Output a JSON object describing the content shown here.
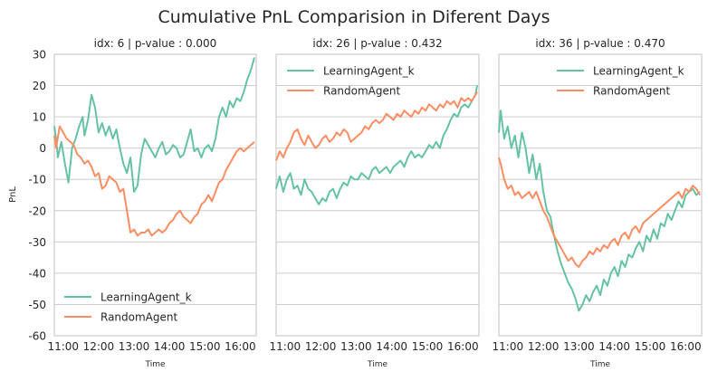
{
  "figure": {
    "title": "Cumulative PnL Comparision in Diferent Days",
    "ylabel": "PnL"
  },
  "colors": {
    "learning": "#66c2a5",
    "random": "#fc8d62",
    "grid": "#cccccc",
    "frame": "#cccccc"
  },
  "chart_data": [
    {
      "type": "line",
      "title": "idx: 6 | p-value : 0.000",
      "xlabel": "Time",
      "ylabel": "PnL",
      "xticks": [
        "11:00",
        "12:00",
        "13:00",
        "14:00",
        "15:00",
        "16:00"
      ],
      "yticks": [
        30,
        20,
        10,
        0,
        -10,
        -20,
        -30,
        -40,
        -50,
        -60
      ],
      "xlim": [
        10.75,
        16.45
      ],
      "ylim": [
        -60,
        30
      ],
      "legend": "bottom-left",
      "series": [
        {
          "name": "LearningAgent_k",
          "x": [
            10.75,
            10.8,
            10.85,
            10.95,
            11.05,
            11.15,
            11.25,
            11.35,
            11.45,
            11.55,
            11.6,
            11.7,
            11.8,
            11.9,
            12.0,
            12.1,
            12.2,
            12.3,
            12.4,
            12.5,
            12.6,
            12.7,
            12.8,
            12.9,
            13.0,
            13.1,
            13.2,
            13.3,
            13.4,
            13.5,
            13.6,
            13.7,
            13.8,
            13.9,
            14.0,
            14.1,
            14.2,
            14.3,
            14.4,
            14.5,
            14.6,
            14.7,
            14.8,
            14.9,
            15.0,
            15.1,
            15.2,
            15.3,
            15.4,
            15.5,
            15.6,
            15.7,
            15.8,
            15.9,
            16.0,
            16.1,
            16.2,
            16.3,
            16.4
          ],
          "values": [
            7,
            3,
            -3,
            2,
            -5,
            -11,
            0,
            3,
            7,
            10,
            4,
            9,
            17,
            13,
            5,
            8,
            4,
            7,
            3,
            6,
            0,
            -5,
            -8,
            -3,
            -14,
            -12,
            -2,
            3,
            1,
            -1,
            -3,
            0,
            2,
            -2,
            -1,
            1,
            0,
            -3,
            -2,
            2,
            6,
            -1,
            0,
            -3,
            0,
            1,
            -1,
            3,
            10,
            13,
            10,
            15,
            13,
            16,
            15,
            18,
            22,
            25,
            29
          ]
        },
        {
          "name": "RandomAgent",
          "x": [
            10.75,
            10.8,
            10.9,
            11.0,
            11.1,
            11.2,
            11.3,
            11.4,
            11.5,
            11.6,
            11.7,
            11.8,
            11.9,
            12.0,
            12.1,
            12.2,
            12.3,
            12.4,
            12.5,
            12.6,
            12.7,
            12.8,
            12.9,
            13.0,
            13.1,
            13.2,
            13.3,
            13.4,
            13.5,
            13.6,
            13.7,
            13.8,
            13.9,
            14.0,
            14.1,
            14.2,
            14.3,
            14.4,
            14.5,
            14.6,
            14.7,
            14.8,
            14.9,
            15.0,
            15.1,
            15.2,
            15.3,
            15.4,
            15.5,
            15.6,
            15.7,
            15.8,
            15.9,
            16.0,
            16.1,
            16.2,
            16.3,
            16.4
          ],
          "values": [
            4,
            0,
            7,
            5,
            3,
            2,
            1,
            -2,
            -3,
            -5,
            -4,
            -6,
            -9,
            -8,
            -13,
            -12,
            -9,
            -10,
            -11,
            -14,
            -13,
            -20,
            -27,
            -26,
            -28,
            -27,
            -27,
            -26,
            -28,
            -27,
            -26,
            -27,
            -26,
            -24,
            -23,
            -21,
            -20,
            -22,
            -23,
            -24,
            -22,
            -21,
            -18,
            -17,
            -15,
            -17,
            -14,
            -11,
            -10,
            -7,
            -5,
            -3,
            -1,
            0,
            -1,
            0,
            1,
            2
          ]
        }
      ]
    },
    {
      "type": "line",
      "title": "idx: 26 | p-value : 0.432",
      "xlabel": "Time",
      "xticks": [
        "11:00",
        "12:00",
        "13:00",
        "14:00",
        "15:00",
        "16:00"
      ],
      "xlim": [
        10.75,
        16.45
      ],
      "ylim": [
        -60,
        30
      ],
      "legend": "top-left",
      "series": [
        {
          "name": "LearningAgent_k",
          "x": [
            10.75,
            10.85,
            10.95,
            11.05,
            11.15,
            11.25,
            11.35,
            11.45,
            11.55,
            11.65,
            11.75,
            11.85,
            11.95,
            12.05,
            12.15,
            12.25,
            12.35,
            12.45,
            12.55,
            12.65,
            12.75,
            12.85,
            12.95,
            13.05,
            13.15,
            13.25,
            13.35,
            13.45,
            13.55,
            13.65,
            13.75,
            13.85,
            13.95,
            14.05,
            14.15,
            14.25,
            14.35,
            14.45,
            14.55,
            14.65,
            14.75,
            14.85,
            14.95,
            15.05,
            15.15,
            15.25,
            15.35,
            15.45,
            15.55,
            15.65,
            15.75,
            15.85,
            15.95,
            16.05,
            16.15,
            16.25,
            16.35,
            16.4
          ],
          "values": [
            -13,
            -9,
            -14,
            -10,
            -8,
            -13,
            -12,
            -15,
            -10,
            -13,
            -14,
            -16,
            -18,
            -16,
            -17,
            -14,
            -13,
            -16,
            -13,
            -11,
            -12,
            -9,
            -10,
            -10,
            -8,
            -9,
            -10,
            -7,
            -6,
            -8,
            -7,
            -6,
            -8,
            -6,
            -5,
            -4,
            -6,
            -3,
            -1,
            -3,
            -2,
            -3,
            -1,
            1,
            0,
            2,
            0,
            4,
            6,
            9,
            11,
            10,
            13,
            14,
            13,
            15,
            17,
            20
          ]
        },
        {
          "name": "RandomAgent",
          "x": [
            10.75,
            10.85,
            10.95,
            11.05,
            11.15,
            11.25,
            11.35,
            11.45,
            11.55,
            11.65,
            11.75,
            11.85,
            11.95,
            12.05,
            12.15,
            12.25,
            12.35,
            12.45,
            12.55,
            12.65,
            12.75,
            12.85,
            12.95,
            13.05,
            13.15,
            13.25,
            13.35,
            13.45,
            13.55,
            13.65,
            13.75,
            13.85,
            13.95,
            14.05,
            14.15,
            14.25,
            14.35,
            14.45,
            14.55,
            14.65,
            14.75,
            14.85,
            14.95,
            15.05,
            15.15,
            15.25,
            15.35,
            15.45,
            15.55,
            15.65,
            15.75,
            15.85,
            15.95,
            16.05,
            16.15,
            16.25,
            16.35,
            16.4
          ],
          "values": [
            -4,
            -1,
            -3,
            0,
            2,
            5,
            6,
            3,
            1,
            4,
            2,
            0,
            1,
            3,
            4,
            2,
            3,
            5,
            4,
            6,
            5,
            2,
            3,
            4,
            5,
            7,
            6,
            8,
            9,
            8,
            9,
            11,
            10,
            9,
            11,
            10,
            12,
            11,
            10,
            12,
            11,
            13,
            12,
            14,
            13,
            12,
            14,
            13,
            15,
            14,
            15,
            13,
            16,
            15,
            16,
            15,
            17,
            18
          ]
        }
      ]
    },
    {
      "type": "line",
      "title": "idx: 36 | p-value : 0.470",
      "xlabel": "Time",
      "xticks": [
        "11:00",
        "12:00",
        "13:00",
        "14:00",
        "15:00",
        "16:00"
      ],
      "xlim": [
        10.75,
        16.45
      ],
      "ylim": [
        -60,
        30
      ],
      "legend": "top-right",
      "series": [
        {
          "name": "LearningAgent_k",
          "x": [
            10.75,
            10.8,
            10.9,
            11.0,
            11.1,
            11.2,
            11.3,
            11.4,
            11.5,
            11.6,
            11.7,
            11.8,
            11.9,
            12.0,
            12.1,
            12.2,
            12.3,
            12.4,
            12.5,
            12.6,
            12.7,
            12.8,
            12.9,
            13.0,
            13.1,
            13.2,
            13.3,
            13.4,
            13.5,
            13.6,
            13.7,
            13.8,
            13.9,
            14.0,
            14.1,
            14.2,
            14.3,
            14.4,
            14.5,
            14.6,
            14.7,
            14.8,
            14.9,
            15.0,
            15.1,
            15.2,
            15.3,
            15.4,
            15.5,
            15.6,
            15.7,
            15.8,
            15.9,
            16.0,
            16.1,
            16.2,
            16.3,
            16.4
          ],
          "values": [
            5,
            12,
            3,
            7,
            0,
            4,
            -3,
            5,
            0,
            -8,
            -2,
            -10,
            -5,
            -14,
            -20,
            -22,
            -28,
            -33,
            -37,
            -40,
            -43,
            -45,
            -48,
            -52,
            -50,
            -47,
            -49,
            -46,
            -44,
            -47,
            -42,
            -44,
            -40,
            -38,
            -41,
            -36,
            -38,
            -34,
            -35,
            -32,
            -30,
            -33,
            -28,
            -30,
            -26,
            -29,
            -24,
            -25,
            -21,
            -23,
            -20,
            -17,
            -19,
            -15,
            -14,
            -13,
            -15,
            -14
          ]
        },
        {
          "name": "RandomAgent",
          "x": [
            10.75,
            10.8,
            10.9,
            11.0,
            11.1,
            11.2,
            11.3,
            11.4,
            11.5,
            11.6,
            11.7,
            11.8,
            11.9,
            12.0,
            12.1,
            12.2,
            12.3,
            12.4,
            12.5,
            12.6,
            12.7,
            12.8,
            12.9,
            13.0,
            13.1,
            13.2,
            13.3,
            13.4,
            13.5,
            13.6,
            13.7,
            13.8,
            13.9,
            14.0,
            14.1,
            14.2,
            14.3,
            14.4,
            14.5,
            14.6,
            14.7,
            14.8,
            14.9,
            15.0,
            15.1,
            15.2,
            15.3,
            15.4,
            15.5,
            15.6,
            15.7,
            15.8,
            15.9,
            16.0,
            16.1,
            16.2,
            16.3,
            16.4
          ],
          "values": [
            -3,
            -5,
            -10,
            -13,
            -12,
            -15,
            -14,
            -16,
            -15,
            -14,
            -16,
            -14,
            -17,
            -20,
            -22,
            -25,
            -28,
            -30,
            -32,
            -34,
            -36,
            -35,
            -37,
            -38,
            -36,
            -35,
            -33,
            -34,
            -32,
            -33,
            -31,
            -32,
            -30,
            -29,
            -31,
            -28,
            -27,
            -29,
            -26,
            -25,
            -27,
            -24,
            -23,
            -22,
            -21,
            -20,
            -19,
            -18,
            -17,
            -16,
            -15,
            -14,
            -16,
            -13,
            -14,
            -12,
            -13,
            -15
          ]
        }
      ]
    }
  ]
}
